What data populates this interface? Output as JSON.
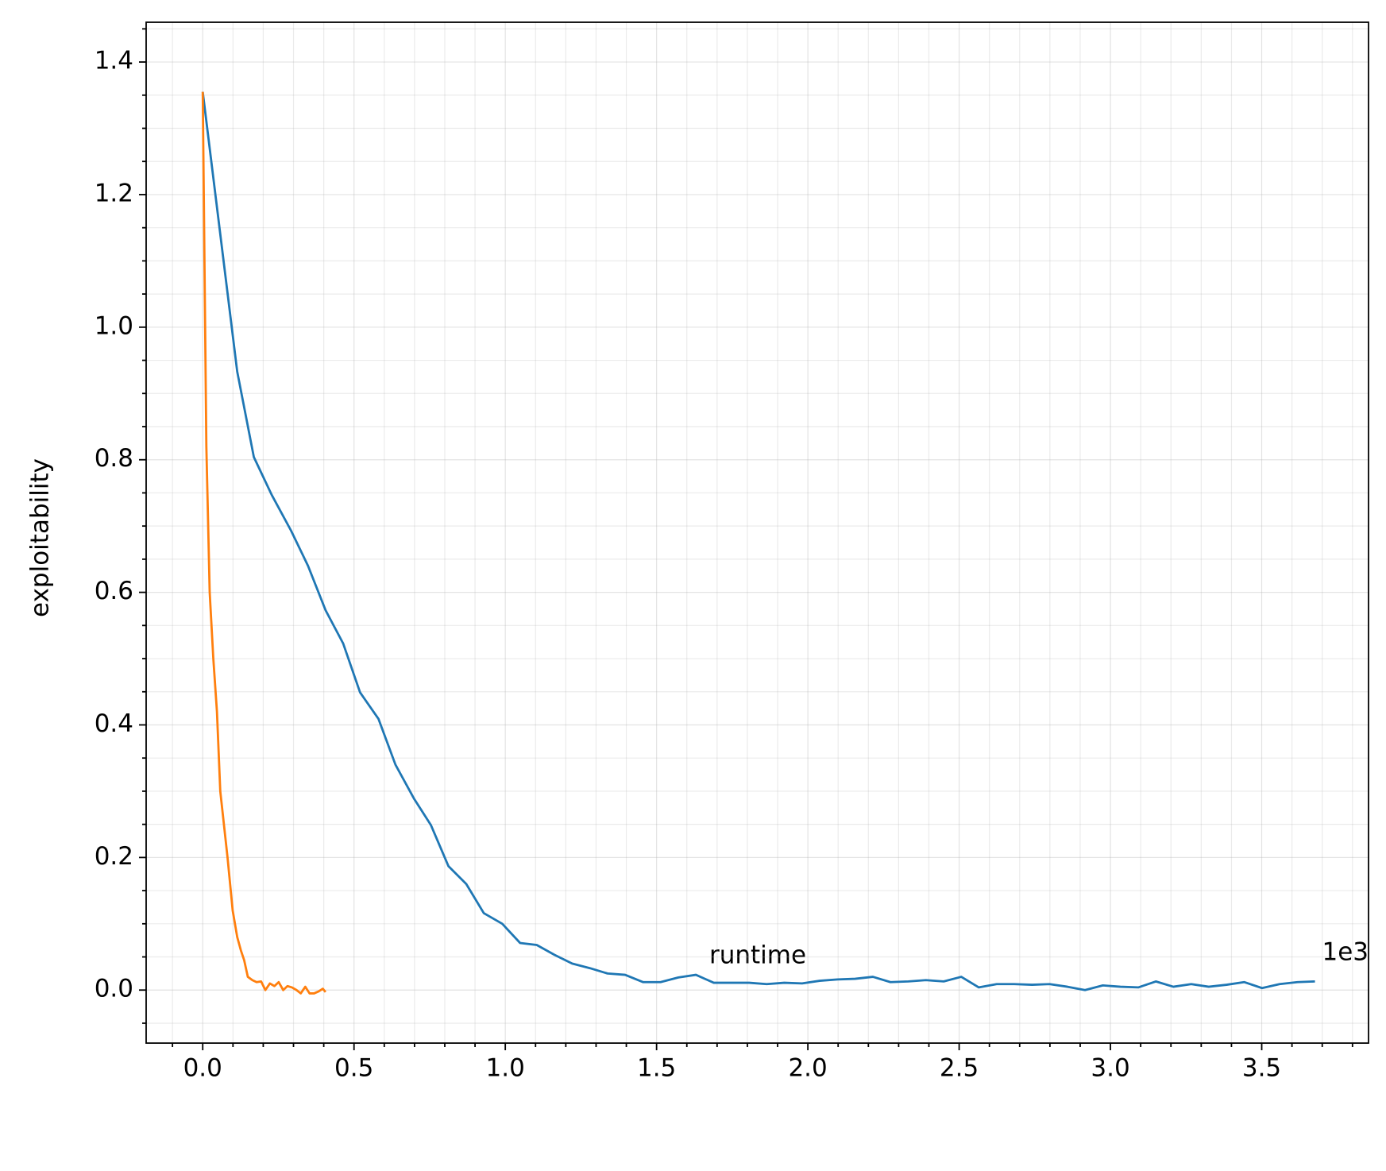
{
  "chart_data": {
    "type": "line",
    "x_label": "runtime",
    "y_label": "exploitability",
    "x_offset_label": "1e3",
    "xlim": [
      -187,
      3853
    ],
    "ylim": [
      -0.08,
      1.46
    ],
    "xticks": [
      {
        "value": 0,
        "label": "0.0"
      },
      {
        "value": 500,
        "label": "0.5"
      },
      {
        "value": 1000,
        "label": "1.0"
      },
      {
        "value": 1500,
        "label": "1.5"
      },
      {
        "value": 2000,
        "label": "2.0"
      },
      {
        "value": 2500,
        "label": "2.5"
      },
      {
        "value": 3000,
        "label": "3.0"
      },
      {
        "value": 3500,
        "label": "3.5"
      }
    ],
    "xminorticks": [
      -100,
      100,
      200,
      300,
      400,
      600,
      700,
      800,
      900,
      1100,
      1200,
      1300,
      1400,
      1600,
      1700,
      1800,
      1900,
      2100,
      2200,
      2300,
      2400,
      2600,
      2700,
      2800,
      2900,
      3100,
      3200,
      3300,
      3400,
      3600,
      3700,
      3800
    ],
    "yticks": [
      {
        "value": 0,
        "label": "0.0"
      },
      0.2,
      0.4,
      0.6,
      0.8,
      {
        "value": 1,
        "label": "1.0"
      },
      1.2,
      1.4
    ],
    "yminorticks": [
      -0.05,
      0.05,
      0.1,
      0.15,
      0.25,
      0.3,
      0.35,
      0.45,
      0.5,
      0.55,
      0.65,
      0.7,
      0.75,
      0.85,
      0.9,
      0.95,
      1.05,
      1.1,
      1.15,
      1.25,
      1.3,
      1.35,
      1.45
    ],
    "grid": true,
    "series": [
      {
        "color": "#1f77b4",
        "x": [
          0,
          114,
          169,
          228,
          292,
          348,
          406,
          464,
          520,
          581,
          637,
          698,
          754,
          812,
          871,
          929,
          990,
          1049,
          1104,
          1163,
          1221,
          1280,
          1338,
          1396,
          1455,
          1513,
          1572,
          1630,
          1689,
          1747,
          1806,
          1864,
          1922,
          1981,
          2039,
          2098,
          2156,
          2215,
          2273,
          2332,
          2390,
          2449,
          2507,
          2565,
          2624,
          2682,
          2741,
          2799,
          2858,
          2916,
          2975,
          3033,
          3092,
          3150,
          3208,
          3267,
          3325,
          3384,
          3442,
          3501,
          3559,
          3618,
          3676
        ],
        "values": [
          1.355,
          0.933,
          0.804,
          0.747,
          0.693,
          0.64,
          0.573,
          0.523,
          0.449,
          0.409,
          0.34,
          0.289,
          0.249,
          0.187,
          0.16,
          0.116,
          0.1,
          0.071,
          0.068,
          0.053,
          0.04,
          0.033,
          0.025,
          0.023,
          0.012,
          0.012,
          0.019,
          0.023,
          0.011,
          0.011,
          0.011,
          0.009,
          0.011,
          0.01,
          0.014,
          0.016,
          0.017,
          0.02,
          0.012,
          0.013,
          0.015,
          0.013,
          0.02,
          0.004,
          0.009,
          0.009,
          0.008,
          0.009,
          0.005,
          0.0,
          0.007,
          0.005,
          0.004,
          0.013,
          0.005,
          0.009,
          0.005,
          0.008,
          0.012,
          0.003,
          0.009,
          0.012,
          0.013
        ]
      },
      {
        "color": "#ff7f0e",
        "x": [
          0,
          12,
          23,
          35,
          47,
          58,
          82,
          99,
          114,
          126,
          137,
          149,
          164,
          178,
          193,
          207,
          222,
          237,
          251,
          266,
          280,
          295,
          310,
          324,
          339,
          353,
          368,
          383,
          397,
          406
        ],
        "values": [
          1.355,
          0.82,
          0.6,
          0.5,
          0.42,
          0.3,
          0.2,
          0.12,
          0.08,
          0.06,
          0.045,
          0.02,
          0.015,
          0.012,
          0.013,
          0.0,
          0.01,
          0.006,
          0.012,
          0.0,
          0.006,
          0.004,
          0.0,
          -0.005,
          0.005,
          -0.005,
          -0.005,
          -0.002,
          0.002,
          -0.003
        ]
      }
    ]
  }
}
